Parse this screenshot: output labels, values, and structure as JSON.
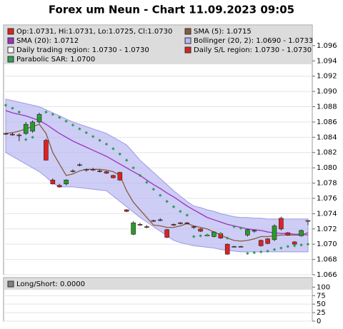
{
  "chart_data": [
    {
      "type": "candlestick",
      "title": "Forex um Neun - Chart 11.09.2023 09:05",
      "ylim": [
        1.066,
        1.0987
      ],
      "yticks": [
        1.066,
        1.068,
        {
          "value": 1.07,
          "label": "1.070"
        },
        1.072,
        1.074,
        1.076,
        1.078,
        {
          "value": 1.08,
          "label": "1.080"
        },
        1.082,
        1.084,
        1.086,
        1.088,
        {
          "value": 1.09,
          "label": "1.090"
        },
        1.092,
        1.094,
        1.096
      ],
      "grid": true,
      "series": [
        {
          "name": "Op:1.0731, Hi:1.0731, Lo:1.0725, Cl:1.0730",
          "color": "#dd2222",
          "up_color": "#2a9a2a",
          "open": [
            1.0845,
            1.0844,
            1.0843,
            1.0845,
            1.0848,
            1.086,
            1.0836,
            1.0784,
            1.0777,
            1.0779,
            1.0796,
            1.0804,
            1.0797,
            1.0798,
            1.0796,
            1.0795,
            1.079,
            1.0794,
            1.0745,
            1.0713,
            1.0726,
            1.0723,
            1.0731,
            1.0732,
            1.0719,
            1.0726,
            1.0728,
            1.0728,
            1.0723,
            1.072,
            1.0712,
            1.071,
            1.0714,
            1.07,
            1.0697,
            1.0697,
            1.0712,
            1.0717,
            1.0705,
            1.0707,
            1.0706,
            1.0734,
            1.0715,
            1.0703,
            1.0711,
            1.0731
          ],
          "high": [
            1.0846,
            1.0846,
            1.0845,
            1.086,
            1.0862,
            1.0872,
            1.0838,
            1.0786,
            1.0779,
            1.0785,
            1.0798,
            1.0806,
            1.0799,
            1.08,
            1.0798,
            1.0796,
            1.0791,
            1.0795,
            1.0746,
            1.073,
            1.0728,
            1.0725,
            1.0732,
            1.0734,
            1.072,
            1.0727,
            1.0729,
            1.0729,
            1.0724,
            1.0721,
            1.0713,
            1.0717,
            1.0715,
            1.0701,
            1.0698,
            1.0698,
            1.072,
            1.0719,
            1.0706,
            1.0708,
            1.0726,
            1.0736,
            1.0716,
            1.0704,
            1.0719,
            1.0731
          ],
          "low": [
            1.0843,
            1.0842,
            1.0835,
            1.0843,
            1.0846,
            1.0858,
            1.081,
            1.0778,
            1.0774,
            1.0777,
            1.0794,
            1.0802,
            1.0795,
            1.0796,
            1.0794,
            1.0792,
            1.0786,
            1.0783,
            1.0742,
            1.0712,
            1.0724,
            1.0721,
            1.0729,
            1.073,
            1.0708,
            1.0724,
            1.0726,
            1.0726,
            1.072,
            1.0716,
            1.071,
            1.0709,
            1.0707,
            1.0686,
            1.0696,
            1.0696,
            1.071,
            1.0715,
            1.0697,
            1.07,
            1.0704,
            1.0718,
            1.0711,
            1.0699,
            1.071,
            1.0725
          ],
          "close": [
            1.0844,
            1.0843,
            1.0842,
            1.0857,
            1.086,
            1.087,
            1.081,
            1.0779,
            1.0775,
            1.0784,
            1.0796,
            1.0804,
            1.0798,
            1.0797,
            1.0795,
            1.0793,
            1.0787,
            1.0784,
            1.0743,
            1.0728,
            1.0725,
            1.0722,
            1.073,
            1.0732,
            1.0709,
            1.0725,
            1.0727,
            1.0727,
            1.0722,
            1.0717,
            1.0711,
            1.0716,
            1.0708,
            1.0687,
            1.0697,
            1.0697,
            1.0719,
            1.0718,
            1.0698,
            1.0701,
            1.0724,
            1.072,
            1.0712,
            1.07,
            1.0718,
            1.073
          ]
        },
        {
          "name": "SMA (5): 1.0715",
          "color": "#8b5a3c",
          "values": [
            1.0845,
            1.0846,
            1.0848,
            1.0851,
            1.0854,
            1.0857,
            1.0845,
            1.082,
            1.0805,
            1.079,
            1.0792,
            1.0796,
            1.0798,
            1.0798,
            1.0798,
            1.0797,
            1.0795,
            1.079,
            1.077,
            1.0755,
            1.0745,
            1.0735,
            1.0725,
            1.0724,
            1.0722,
            1.0722,
            1.0724,
            1.0727,
            1.0724,
            1.0722,
            1.072,
            1.0716,
            1.0712,
            1.0708,
            1.0705,
            1.0704,
            1.0705,
            1.0707,
            1.071,
            1.071,
            1.0711,
            1.0712,
            1.0712,
            1.0712,
            1.0712,
            1.0715
          ]
        },
        {
          "name": "SMA (20): 1.0712",
          "color": "#a030c0",
          "values": [
            1.0875,
            1.0872,
            1.087,
            1.0868,
            1.0865,
            1.0862,
            1.0857,
            1.0851,
            1.0845,
            1.084,
            1.0835,
            1.0831,
            1.0827,
            1.0823,
            1.0819,
            1.0815,
            1.081,
            1.0805,
            1.08,
            1.0795,
            1.079,
            1.0784,
            1.0778,
            1.0773,
            1.0767,
            1.0762,
            1.0756,
            1.075,
            1.0745,
            1.074,
            1.0735,
            1.0732,
            1.0729,
            1.0726,
            1.0724,
            1.0722,
            1.072,
            1.0719,
            1.0718,
            1.0716,
            1.0715,
            1.0714,
            1.0714,
            1.0713,
            1.0713,
            1.0712
          ]
        },
        {
          "name": "Bollinger (20, 2): 1.0690 - 1.0733",
          "color": "#b8b8f2",
          "upper": [
            1.089,
            1.0888,
            1.0886,
            1.0884,
            1.0882,
            1.088,
            1.0876,
            1.0872,
            1.0868,
            1.0864,
            1.086,
            1.0857,
            1.0854,
            1.0851,
            1.0848,
            1.0845,
            1.084,
            1.0835,
            1.083,
            1.082,
            1.081,
            1.0802,
            1.0794,
            1.0786,
            1.0778,
            1.077,
            1.0763,
            1.0756,
            1.075,
            1.0748,
            1.0745,
            1.0743,
            1.074,
            1.0738,
            1.0736,
            1.0735,
            1.0735,
            1.0734,
            1.0734,
            1.0733,
            1.0733,
            1.0733,
            1.0733,
            1.0733,
            1.0733,
            1.0733
          ],
          "lower": [
            1.082,
            1.0815,
            1.081,
            1.0805,
            1.08,
            1.0795,
            1.0788,
            1.078,
            1.0775,
            1.0775,
            1.0775,
            1.0774,
            1.0773,
            1.0772,
            1.0771,
            1.077,
            1.0763,
            1.0756,
            1.0749,
            1.0742,
            1.0735,
            1.0729,
            1.0723,
            1.0717,
            1.0711,
            1.0705,
            1.0702,
            1.07,
            1.0698,
            1.0697,
            1.0696,
            1.0695,
            1.0693,
            1.0692,
            1.0691,
            1.069,
            1.069,
            1.069,
            1.069,
            1.069,
            1.069,
            1.069,
            1.069,
            1.069,
            1.069,
            1.069
          ]
        },
        {
          "name": "Daily trading region: 1.0730 - 1.0730",
          "color": "#ffffff"
        },
        {
          "name": "Daily S/L region: 1.0730 - 1.0730",
          "color": "#dd2222"
        },
        {
          "name": "Parabolic SAR: 1.0700",
          "color": "#2e9e55",
          "marker": "diamond",
          "values": [
            1.0882,
            1.0878,
            1.0873,
            1.0837,
            1.084,
            1.0868,
            1.0873,
            1.087,
            1.0866,
            1.0861,
            1.0856,
            1.0851,
            1.0846,
            1.0841,
            1.0836,
            1.0831,
            1.0825,
            1.0818,
            1.081,
            1.08,
            1.079,
            1.0781,
            1.0772,
            1.0764,
            1.0756,
            1.0749,
            1.0743,
            1.0738,
            1.071,
            1.0711,
            1.0712,
            1.0713,
            1.0714,
            1.0708,
            1.0723,
            1.0721,
            1.0688,
            1.0689,
            1.069,
            1.0691,
            1.0693,
            1.0695,
            1.0697,
            1.0698,
            1.0699,
            1.07
          ]
        }
      ]
    },
    {
      "type": "line",
      "ylim": [
        0,
        128
      ],
      "yticks": [
        0,
        25,
        50,
        75,
        100
      ],
      "grid": true,
      "series": [
        {
          "name": "Long/Short: 0.0000",
          "color": "#808080"
        }
      ]
    }
  ]
}
